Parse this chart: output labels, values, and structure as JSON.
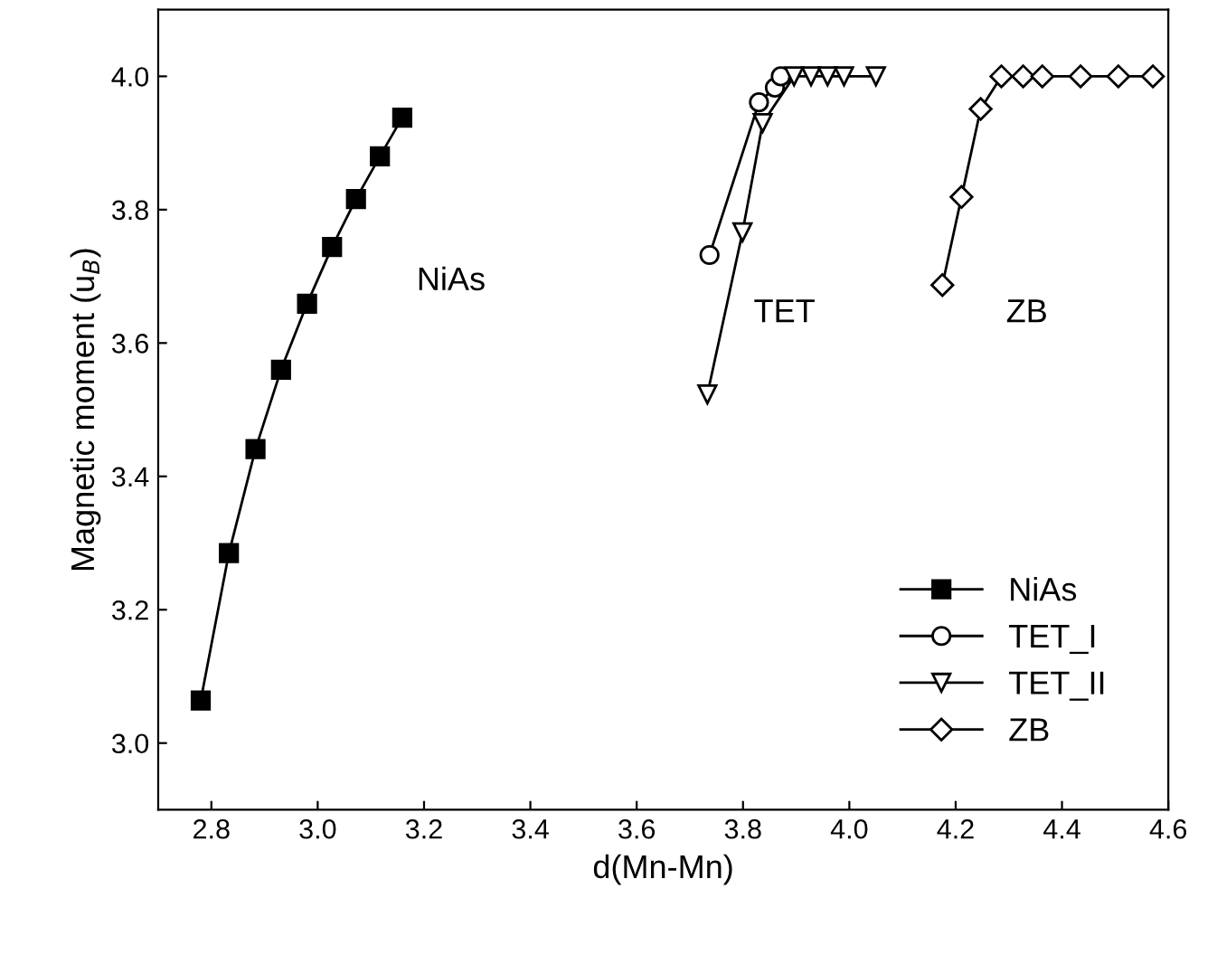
{
  "chart_data": {
    "type": "line",
    "xlabel": "d(Mn-Mn)",
    "ylabel": "Magnetic moment (u$_{B}$)",
    "xlim": [
      2.7,
      4.6
    ],
    "xticks": [
      2.8,
      {
        "value": 3,
        "label": "3.0"
      },
      3.2,
      3.4,
      3.6,
      3.8,
      {
        "value": 4,
        "label": "4.0"
      },
      4.2,
      4.4,
      4.6
    ],
    "ylim": [
      2.9,
      4.1
    ],
    "yticks": [
      {
        "value": 3,
        "label": "3.0"
      },
      3.2,
      3.4,
      3.6,
      3.8,
      {
        "value": 4,
        "label": "4.0"
      }
    ],
    "grid": false,
    "legend": "bottom right",
    "line_style": "solid",
    "annotations": [
      "NiAs",
      "TET",
      "ZB"
    ],
    "series": [
      {
        "name": "NiAs",
        "color": "#000000",
        "marker": "square",
        "x": [
          2.78,
          2.833,
          2.883,
          2.931,
          2.98,
          3.027,
          3.072,
          3.117,
          3.159
        ],
        "values": [
          3.064,
          3.285,
          3.441,
          3.56,
          3.659,
          3.744,
          3.816,
          3.88,
          3.938
        ]
      },
      {
        "name": "TET_I",
        "color": "#000000",
        "marker": "circle",
        "x": [
          3.737,
          3.83,
          3.86,
          3.871
        ],
        "values": [
          3.732,
          3.961,
          3.983,
          4.0
        ]
      },
      {
        "name": "TET_II",
        "color": "#000000",
        "marker": "triangle",
        "x": [
          3.733,
          3.799,
          3.837,
          3.896,
          3.928,
          3.959,
          3.99,
          4.05
        ],
        "values": [
          3.523,
          3.766,
          3.93,
          4.0,
          4.0,
          4.0,
          4.0,
          4.0
        ]
      },
      {
        "name": "ZB",
        "color": "#000000",
        "marker": "diamond",
        "x": [
          4.175,
          4.211,
          4.247,
          4.286,
          4.327,
          4.363,
          4.435,
          4.506,
          4.571
        ],
        "values": [
          3.687,
          3.819,
          3.951,
          4.0,
          4.0,
          4.0,
          4.0,
          4.0,
          4.0
        ]
      }
    ]
  }
}
